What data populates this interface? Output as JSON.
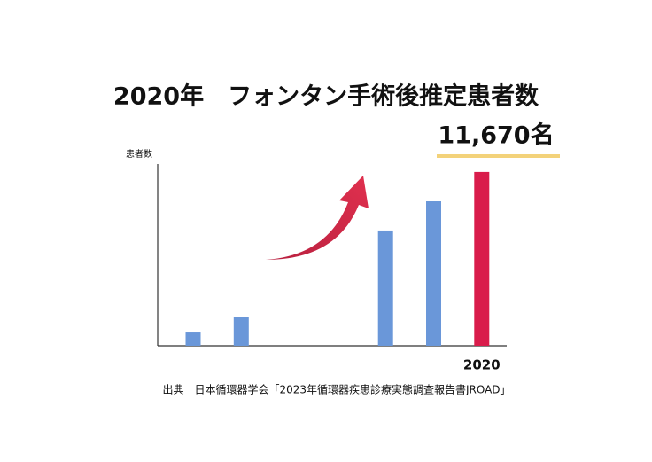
{
  "chart_data": {
    "type": "bar",
    "title": "2020年　フォンタン手術後推定患者数",
    "y_label": "患者数",
    "categories": [
      null,
      null,
      null,
      null,
      null,
      null,
      "2020"
    ],
    "values": [
      950,
      1960,
      null,
      null,
      7740,
      9700,
      11670
    ],
    "value_labels": [
      null,
      null,
      null,
      null,
      null,
      null,
      "11,670名"
    ],
    "colors": [
      "#6a97d9",
      "#6a97d9",
      null,
      null,
      "#6a97d9",
      "#6a97d9",
      "#d91c4b"
    ],
    "ylim": [
      0,
      12200
    ],
    "source": "出典　日本循環器学会「2023年循環器疾患診療実態調査報告書JROAD」"
  }
}
